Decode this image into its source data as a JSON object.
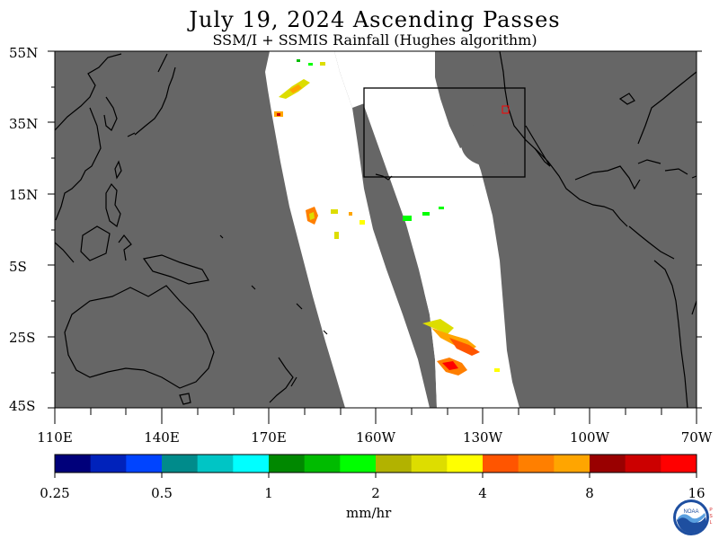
{
  "title": "July 19, 2024  Ascending Passes",
  "subtitle": "SSM/I + SSMIS Rainfall (Hughes algorithm)",
  "lat_labels": [
    "55N",
    "35N",
    "15N",
    "5S",
    "25S",
    "45S"
  ],
  "lon_labels": [
    "110E",
    "140E",
    "170E",
    "160W",
    "130W",
    "100W",
    "70W"
  ],
  "colorbar": {
    "colors": [
      "#00007a",
      "#0022bb",
      "#0044ff",
      "#008b8b",
      "#00c5c5",
      "#00ffff",
      "#008800",
      "#00bb00",
      "#00ff00",
      "#b2b200",
      "#dddd00",
      "#ffff00",
      "#ff5500",
      "#ff7f00",
      "#ffa500",
      "#990000",
      "#cc0000",
      "#ff0000"
    ],
    "tick_labels": [
      "0.25",
      "0.5",
      "1",
      "2",
      "4",
      "8",
      "16"
    ],
    "unit": "mm/hr"
  },
  "map_colors": {
    "land_nodata": "#666666",
    "no_rain": "#ffffff",
    "coast": "#000000"
  },
  "logo": {
    "name": "NOAA",
    "side_text": "PSL"
  }
}
